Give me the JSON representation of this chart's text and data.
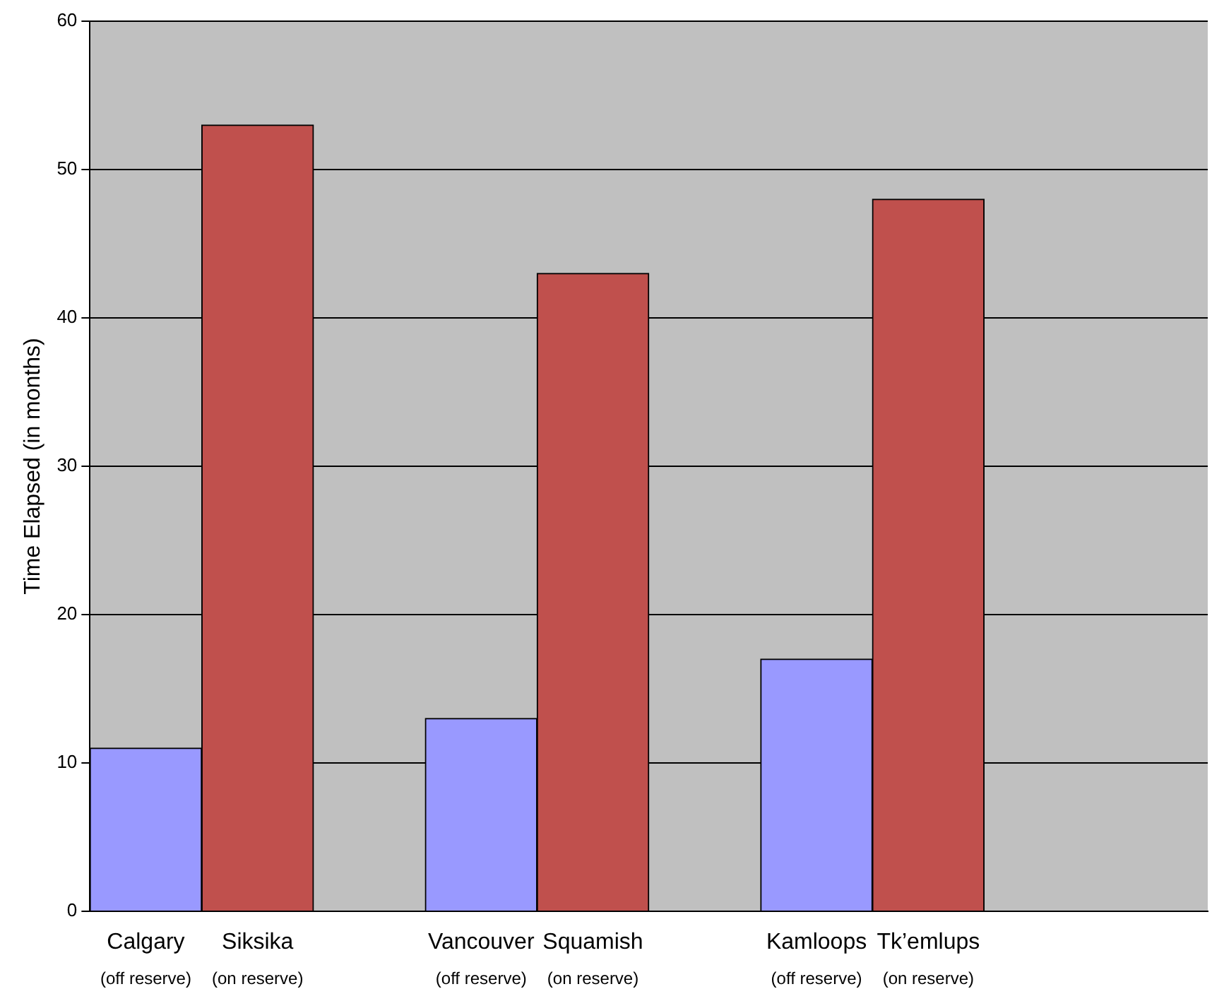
{
  "chart_data": {
    "type": "bar",
    "ylabel": "Time Elapsed (in months)",
    "categories": [
      "Calgary\n(off reserve)",
      "Siksika\n(on reserve)",
      null,
      "Vancouver\n(off reserve)",
      "Squamish\n(on reserve)",
      null,
      "Kamloops\n(off reserve)",
      "Tk’emlups\n(on reserve)",
      null,
      null
    ],
    "values": [
      11,
      53,
      null,
      13,
      43,
      null,
      17,
      48,
      null,
      null
    ],
    "colors": [
      "#9999ff",
      "#c0504d",
      "#9999ff",
      "#9999ff",
      "#c0504d",
      "#9999ff",
      "#9999ff",
      "#c0504d",
      "#9999ff",
      "#9999ff"
    ],
    "ylim": [
      0,
      60
    ],
    "yticks": [
      0,
      10,
      20,
      30,
      40,
      50,
      60
    ],
    "grid": "y",
    "legend": false
  }
}
